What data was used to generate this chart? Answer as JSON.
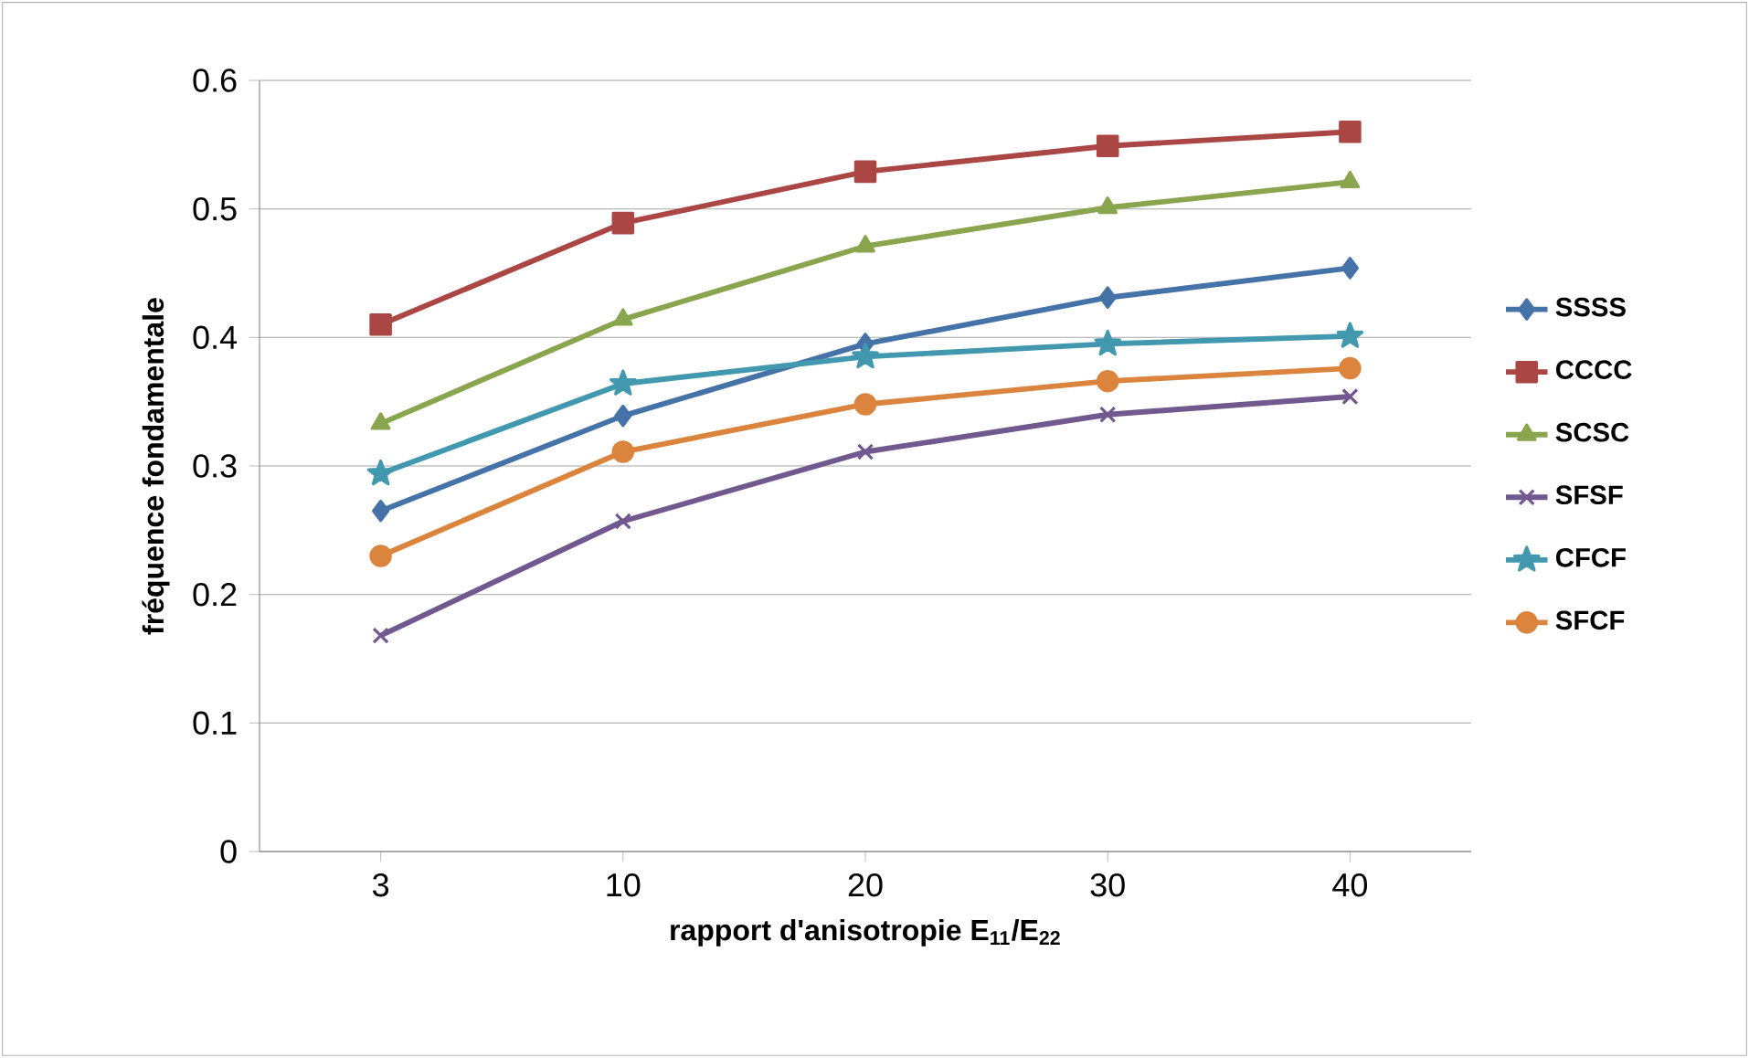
{
  "chart_data": {
    "type": "line",
    "xlabel": "rapport d'anisotropie E$_{11}$/E$_{22}$",
    "ylabel": "fréquence fondamentale",
    "categories": [
      "3",
      "10",
      "20",
      "30",
      "40"
    ],
    "series": [
      {
        "name": "SSSS",
        "color": "#4572a7",
        "marker": "diamond",
        "values": [
          0.265,
          0.339,
          0.395,
          0.431,
          0.454
        ]
      },
      {
        "name": "CCCC",
        "color": "#aa4643",
        "marker": "square",
        "values": [
          0.41,
          0.489,
          0.529,
          0.549,
          0.56
        ]
      },
      {
        "name": "SCSC",
        "color": "#89a54e",
        "marker": "triangle",
        "values": [
          0.333,
          0.414,
          0.471,
          0.501,
          0.521
        ]
      },
      {
        "name": "SFSF",
        "color": "#71588f",
        "marker": "cross",
        "values": [
          0.168,
          0.257,
          0.311,
          0.34,
          0.354
        ]
      },
      {
        "name": "CFCF",
        "color": "#4198af",
        "marker": "star",
        "values": [
          0.294,
          0.364,
          0.385,
          0.395,
          0.401
        ]
      },
      {
        "name": "SFCF",
        "color": "#db843d",
        "marker": "circle",
        "values": [
          0.23,
          0.311,
          0.348,
          0.366,
          0.376
        ]
      }
    ],
    "ylim": [
      0,
      0.6
    ],
    "yticks": [
      0,
      0.1,
      0.2,
      0.3,
      0.4,
      0.5,
      0.6
    ],
    "grid": "y",
    "legend": "right",
    "line_style": "solid"
  }
}
